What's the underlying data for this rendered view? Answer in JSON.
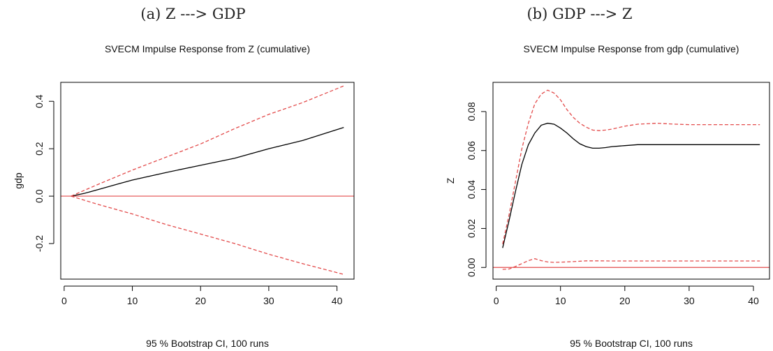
{
  "chart_data": [
    {
      "type": "line",
      "caption": "(a)  Z ---> GDP",
      "title": "SVECM Impulse Response from Z (cumulative)",
      "xlabel": "",
      "ylabel": "gdp",
      "footnote": "95 % Bootstrap CI,  100 runs",
      "xlim": [
        -0.5,
        42.5
      ],
      "ylim": [
        -0.35,
        0.48
      ],
      "x_ticks": [
        "0",
        "10",
        "20",
        "30",
        "40"
      ],
      "y_ticks": [
        "-0.2",
        "0.0",
        "0.2",
        "0.4"
      ],
      "zero_line_color": "#e34b4b",
      "series": [
        {
          "style": "solid",
          "color": "#000000",
          "x": [
            1,
            3,
            5,
            8,
            10,
            15,
            20,
            25,
            30,
            35,
            41
          ],
          "y": [
            0.0,
            0.012,
            0.028,
            0.052,
            0.068,
            0.1,
            0.13,
            0.16,
            0.2,
            0.235,
            0.29
          ]
        },
        {
          "style": "dashed",
          "color": "#e34b4b",
          "x": [
            1,
            5,
            10,
            15,
            20,
            25,
            30,
            35,
            41
          ],
          "y": [
            0.0,
            0.05,
            0.11,
            0.165,
            0.22,
            0.285,
            0.345,
            0.395,
            0.465
          ]
        },
        {
          "style": "dashed",
          "color": "#e34b4b",
          "x": [
            1,
            5,
            10,
            15,
            20,
            25,
            30,
            35,
            41
          ],
          "y": [
            0.0,
            -0.035,
            -0.075,
            -0.12,
            -0.16,
            -0.2,
            -0.245,
            -0.285,
            -0.33
          ]
        }
      ]
    },
    {
      "type": "line",
      "caption": "(b)  GDP ---> Z",
      "title": "SVECM Impulse Response from gdp (cumulative)",
      "xlabel": "",
      "ylabel": "Z",
      "footnote": "95 % Bootstrap CI,  100 runs",
      "xlim": [
        -0.5,
        42.5
      ],
      "ylim": [
        -0.006,
        0.095
      ],
      "x_ticks": [
        "0",
        "10",
        "20",
        "30",
        "40"
      ],
      "y_ticks": [
        "0.00",
        "0.02",
        "0.04",
        "0.06",
        "0.08"
      ],
      "zero_line_color": "#e34b4b",
      "series": [
        {
          "style": "solid",
          "color": "#000000",
          "x": [
            1,
            2,
            3,
            4,
            5,
            6,
            7,
            8,
            9,
            10,
            11,
            12,
            13,
            14,
            15,
            16,
            17,
            18,
            20,
            22,
            25,
            28,
            30,
            35,
            41
          ],
          "y": [
            0.01,
            0.024,
            0.039,
            0.053,
            0.063,
            0.069,
            0.073,
            0.074,
            0.0735,
            0.0715,
            0.069,
            0.066,
            0.0635,
            0.062,
            0.0612,
            0.0612,
            0.0615,
            0.062,
            0.0625,
            0.063,
            0.063,
            0.063,
            0.063,
            0.063,
            0.063
          ]
        },
        {
          "style": "dashed",
          "color": "#e34b4b",
          "x": [
            1,
            2,
            3,
            4,
            5,
            6,
            7,
            8,
            9,
            10,
            11,
            12,
            13,
            14,
            15,
            16,
            17,
            18,
            20,
            22,
            25,
            28,
            30,
            35,
            41
          ],
          "y": [
            0.012,
            0.027,
            0.044,
            0.061,
            0.074,
            0.084,
            0.089,
            0.091,
            0.0895,
            0.086,
            0.081,
            0.077,
            0.074,
            0.072,
            0.0705,
            0.0702,
            0.0705,
            0.071,
            0.0725,
            0.0735,
            0.074,
            0.0735,
            0.0733,
            0.0733,
            0.0733
          ]
        },
        {
          "style": "dashed",
          "color": "#e34b4b",
          "x": [
            1,
            2,
            3,
            4,
            5,
            6,
            7,
            8,
            9,
            10,
            12,
            14,
            16,
            18,
            20,
            25,
            30,
            35,
            41
          ],
          "y": [
            -0.001,
            -0.0008,
            0.0005,
            0.002,
            0.0035,
            0.0045,
            0.0035,
            0.0028,
            0.0026,
            0.0027,
            0.003,
            0.0034,
            0.0034,
            0.0033,
            0.0033,
            0.0033,
            0.0033,
            0.0033,
            0.0033
          ]
        }
      ]
    }
  ]
}
